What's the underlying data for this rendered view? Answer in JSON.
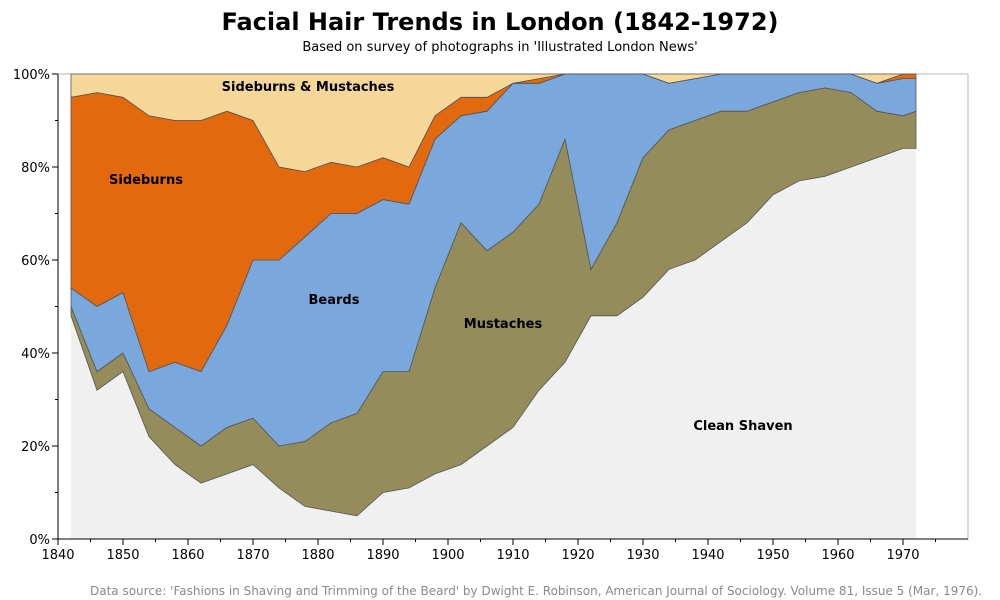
{
  "title": "Facial Hair Trends in London (1842-1972)",
  "subtitle": "Based on survey of photographs in 'Illustrated London News'",
  "source_note": "Data source: 'Fashions in Shaving and Trimming of the Beard' by Dwight E. Robinson, American Journal of Sociology. Volume 81, Issue 5 (Mar, 1976).",
  "chart_data": {
    "type": "area",
    "stacked": true,
    "title": "Facial Hair Trends in London (1842-1972)",
    "subtitle": "Based on survey of photographs in 'Illustrated London News'",
    "xlabel": "",
    "ylabel": "",
    "xlim": [
      1840,
      1980
    ],
    "ylim": [
      0,
      100
    ],
    "x_ticks": [
      1840,
      1850,
      1860,
      1870,
      1880,
      1890,
      1900,
      1910,
      1920,
      1930,
      1940,
      1950,
      1960,
      1970
    ],
    "y_ticks": [
      "0%",
      "20%",
      "40%",
      "60%",
      "80%",
      "100%"
    ],
    "x": [
      1842,
      1846,
      1850,
      1854,
      1858,
      1862,
      1866,
      1870,
      1874,
      1878,
      1882,
      1886,
      1890,
      1894,
      1898,
      1902,
      1906,
      1910,
      1914,
      1918,
      1922,
      1926,
      1930,
      1934,
      1938,
      1942,
      1946,
      1950,
      1954,
      1958,
      1962,
      1966,
      1970,
      1972
    ],
    "series": [
      {
        "name": "Clean Shaven",
        "color": "#f0f0f0",
        "values": [
          48,
          32,
          36,
          22,
          16,
          12,
          14,
          16,
          11,
          7,
          6,
          5,
          10,
          11,
          14,
          16,
          20,
          24,
          32,
          38,
          48,
          48,
          52,
          58,
          60,
          64,
          68,
          74,
          77,
          78,
          80,
          82,
          84,
          84
        ]
      },
      {
        "name": "Mustaches",
        "color": "#948c5a",
        "values": [
          2,
          4,
          4,
          6,
          8,
          8,
          10,
          10,
          9,
          14,
          19,
          22,
          26,
          25,
          40,
          52,
          42,
          42,
          40,
          48,
          10,
          20,
          30,
          30,
          30,
          28,
          24,
          20,
          19,
          19,
          16,
          10,
          7,
          8
        ]
      },
      {
        "name": "Beards",
        "color": "#7aa8dc",
        "values": [
          4,
          14,
          13,
          8,
          14,
          16,
          22,
          34,
          40,
          44,
          45,
          43,
          37,
          36,
          32,
          23,
          30,
          32,
          26,
          14,
          42,
          32,
          18,
          10,
          9,
          8,
          8,
          6,
          4,
          3,
          4,
          6,
          8,
          7
        ]
      },
      {
        "name": "Sideburns",
        "color": "#e3690e",
        "values": [
          41,
          46,
          42,
          55,
          52,
          54,
          46,
          30,
          20,
          14,
          11,
          10,
          9,
          8,
          5,
          4,
          3,
          0,
          1,
          0,
          0,
          0,
          0,
          0,
          0,
          0,
          0,
          0,
          0,
          0,
          0,
          0,
          1,
          1
        ]
      },
      {
        "name": "Sideburns & Mustaches",
        "color": "#f5d799",
        "values": [
          5,
          4,
          5,
          9,
          10,
          10,
          8,
          10,
          20,
          21,
          19,
          20,
          18,
          20,
          9,
          5,
          5,
          2,
          1,
          0,
          0,
          0,
          0,
          2,
          1,
          0,
          0,
          0,
          0,
          0,
          0,
          2,
          0,
          0
        ]
      }
    ],
    "area_labels": [
      "Sideburns & Mustaches",
      "Sideburns",
      "Beards",
      "Mustaches",
      "Clean Shaven"
    ],
    "grid": false,
    "legend": "none"
  }
}
